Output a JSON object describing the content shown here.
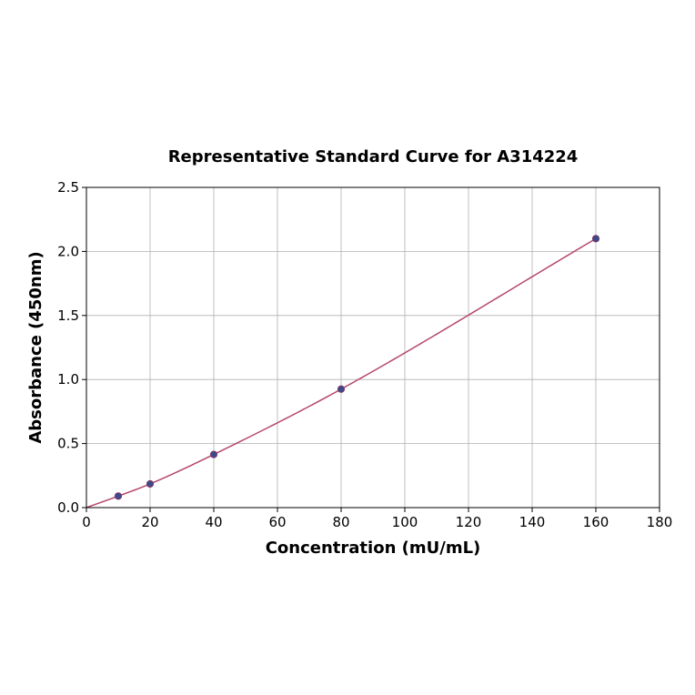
{
  "chart_data": {
    "type": "scatter",
    "title": "Representative Standard Curve for A314224",
    "xlabel": "Concentration (mU/mL)",
    "ylabel": "Absorbance (450nm)",
    "xlim": [
      0,
      180
    ],
    "ylim": [
      0,
      2.5
    ],
    "x_ticks": [
      "0",
      "20",
      "40",
      "60",
      "80",
      "100",
      "120",
      "140",
      "160",
      "180"
    ],
    "y_ticks": [
      "0.0",
      "0.5",
      "1.0",
      "1.5",
      "2.0",
      "2.5"
    ],
    "grid": true,
    "series": [
      {
        "type": "scatter",
        "x": [
          10,
          20,
          40,
          80,
          160
        ],
        "y": [
          0.09,
          0.185,
          0.415,
          0.925,
          2.1
        ]
      },
      {
        "type": "line",
        "x": [
          0,
          10,
          20,
          40,
          80,
          160
        ],
        "y": [
          0.0,
          0.09,
          0.185,
          0.415,
          0.925,
          2.1
        ]
      }
    ],
    "colors": {
      "points": "#3b4a8a",
      "curve": "#b5476b"
    }
  }
}
